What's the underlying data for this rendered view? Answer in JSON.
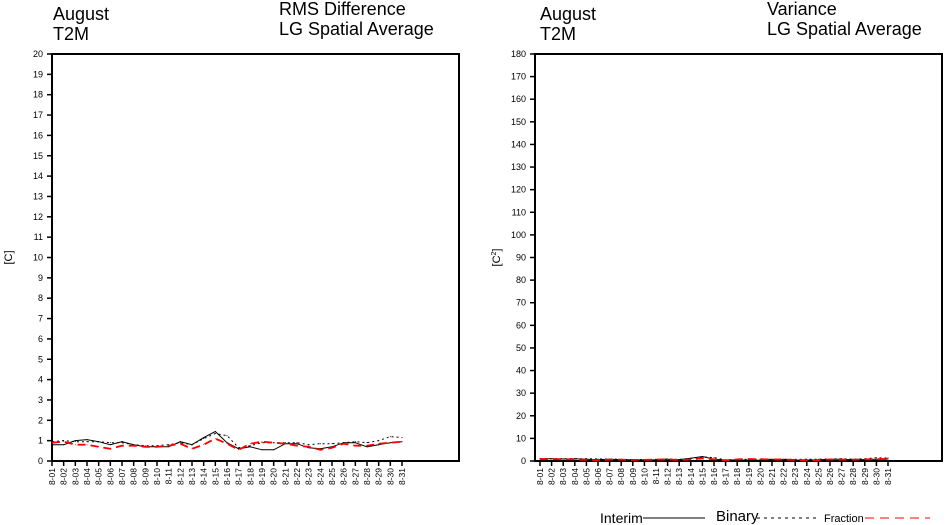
{
  "chart_data": [
    {
      "type": "line",
      "title_left": [
        "August",
        "T2M"
      ],
      "title_right": [
        "RMS Difference",
        "LG Spatial Average"
      ],
      "ylabel": "[C]",
      "ylim": [
        0,
        20
      ],
      "yticks": [
        0,
        1,
        2,
        3,
        4,
        5,
        6,
        7,
        8,
        9,
        10,
        11,
        12,
        13,
        14,
        15,
        16,
        17,
        18,
        19,
        20
      ],
      "categories": [
        "8-01",
        "8-02",
        "8-03",
        "8-04",
        "8-05",
        "8-06",
        "8-07",
        "8-08",
        "8-09",
        "8-10",
        "8-11",
        "8-12",
        "8-13",
        "8-14",
        "8-15",
        "8-16",
        "8-17",
        "8-18",
        "8-19",
        "8-20",
        "8-21",
        "8-22",
        "8-23",
        "8-24",
        "8-25",
        "8-26",
        "8-27",
        "8-28",
        "8-29",
        "8-30",
        "8-31"
      ],
      "series": [
        {
          "name": "Interim",
          "style": "solid",
          "color": "#000000",
          "values": [
            0.8,
            0.8,
            1.0,
            1.05,
            0.95,
            0.8,
            0.95,
            0.8,
            0.7,
            0.7,
            0.7,
            0.95,
            0.8,
            1.15,
            1.45,
            0.9,
            0.6,
            0.7,
            0.55,
            0.55,
            0.85,
            0.85,
            0.65,
            0.6,
            0.7,
            0.9,
            0.9,
            0.7,
            0.8,
            0.9,
            0.95
          ]
        },
        {
          "name": "Binary",
          "style": "dotted",
          "color": "#000000",
          "values": [
            0.95,
            1.0,
            0.95,
            0.95,
            0.95,
            0.9,
            0.9,
            0.8,
            0.75,
            0.75,
            0.8,
            0.9,
            0.8,
            1.1,
            1.35,
            1.25,
            0.65,
            0.75,
            0.9,
            0.9,
            0.9,
            0.9,
            0.8,
            0.85,
            0.85,
            0.9,
            0.95,
            0.9,
            1.0,
            1.2,
            1.15
          ]
        },
        {
          "name": "Fraction",
          "style": "dashed",
          "color": "#ff0000",
          "values": [
            0.9,
            0.95,
            0.8,
            0.8,
            0.7,
            0.6,
            0.75,
            0.75,
            0.7,
            0.7,
            0.75,
            0.85,
            0.6,
            0.8,
            1.1,
            0.85,
            0.55,
            0.85,
            0.95,
            0.9,
            0.85,
            0.75,
            0.7,
            0.55,
            0.65,
            0.85,
            0.75,
            0.75,
            0.85,
            0.9,
            0.95
          ]
        }
      ]
    },
    {
      "type": "line",
      "title_left": [
        "August",
        "T2M"
      ],
      "title_right": [
        "Variance",
        "LG Spatial Average"
      ],
      "ylabel": "[C2]",
      "ylim": [
        0,
        180
      ],
      "yticks": [
        0,
        10,
        20,
        30,
        40,
        50,
        60,
        70,
        80,
        90,
        100,
        110,
        120,
        130,
        140,
        150,
        160,
        170,
        180
      ],
      "categories": [
        "8-01",
        "8-02",
        "8-03",
        "8-04",
        "8-05",
        "8-06",
        "8-07",
        "8-08",
        "8-09",
        "8-10",
        "8-11",
        "8-12",
        "8-13",
        "8-14",
        "8-15",
        "8-16",
        "8-17",
        "8-18",
        "8-19",
        "8-20",
        "8-21",
        "8-22",
        "8-23",
        "8-24",
        "8-25",
        "8-26",
        "8-27",
        "8-28",
        "8-29",
        "8-30",
        "8-31"
      ],
      "series": [
        {
          "name": "Interim",
          "style": "solid",
          "color": "#000000",
          "values": [
            1.0,
            1.0,
            0.9,
            1.0,
            0.8,
            0.6,
            0.8,
            0.6,
            0.5,
            0.5,
            0.5,
            0.8,
            0.6,
            1.2,
            2.0,
            0.8,
            0.4,
            0.5,
            0.3,
            0.3,
            0.7,
            0.7,
            0.4,
            0.4,
            0.5,
            0.8,
            0.8,
            0.5,
            0.6,
            0.8,
            0.9
          ]
        },
        {
          "name": "Binary",
          "style": "dotted",
          "color": "#000000",
          "values": [
            1.0,
            1.0,
            1.0,
            1.0,
            1.0,
            0.9,
            0.9,
            0.7,
            0.6,
            0.6,
            0.7,
            0.9,
            0.7,
            1.2,
            1.8,
            1.5,
            0.5,
            0.6,
            0.8,
            0.8,
            0.8,
            0.8,
            0.7,
            0.8,
            0.8,
            0.9,
            1.0,
            0.8,
            1.0,
            1.4,
            1.3
          ]
        },
        {
          "name": "Fraction",
          "style": "dashed",
          "color": "#ff0000",
          "values": [
            0.8,
            0.9,
            0.7,
            0.7,
            0.5,
            0.4,
            0.6,
            0.6,
            0.5,
            0.5,
            0.6,
            0.7,
            0.4,
            0.7,
            1.2,
            0.7,
            0.3,
            0.7,
            0.9,
            0.8,
            0.7,
            0.6,
            0.5,
            0.3,
            0.4,
            0.7,
            0.6,
            0.6,
            0.7,
            0.8,
            0.9
          ]
        }
      ]
    }
  ],
  "legend": {
    "interim": "Interim",
    "binary": "Binary",
    "fraction": "Fraction"
  }
}
